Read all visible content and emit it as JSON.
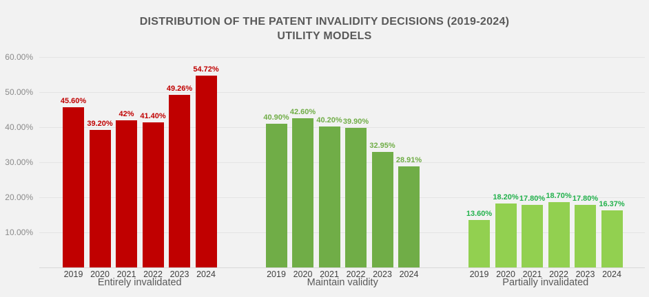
{
  "title": {
    "line1": "DISTRIBUTION OF THE PATENT INVALIDITY DECISIONS (2019-2024)",
    "line2": "UTILITY MODELS"
  },
  "chart_data": {
    "type": "bar",
    "title": "DISTRIBUTION OF THE PATENT INVALIDITY DECISIONS (2019-2024) UTILITY MODELS",
    "categories": [
      "2019",
      "2020",
      "2021",
      "2022",
      "2023",
      "2024"
    ],
    "series": [
      {
        "name": "Entirely invalidated",
        "color": "#C00000",
        "label_color": "#C00000",
        "values": [
          45.6,
          39.2,
          42,
          41.4,
          49.26,
          54.72
        ],
        "labels": [
          "45.60%",
          "39.20%",
          "42%",
          "41.40%",
          "49.26%",
          "54.72%"
        ]
      },
      {
        "name": "Maintain validity",
        "color": "#70AD47",
        "label_color": "#70AD47",
        "values": [
          40.9,
          42.6,
          40.2,
          39.9,
          32.95,
          28.91
        ],
        "labels": [
          "40.90%",
          "42.60%",
          "40.20%",
          "39.90%",
          "32.95%",
          "28.91%"
        ]
      },
      {
        "name": "Partially invalidated",
        "color": "#92D050",
        "label_color": "#22B14C",
        "values": [
          13.6,
          18.2,
          17.8,
          18.7,
          17.8,
          16.37
        ],
        "labels": [
          "13.60%",
          "18.20%",
          "17.80%",
          "18.70%",
          "17.80%",
          "16.37%"
        ]
      }
    ],
    "ylim": [
      0,
      60
    ],
    "yticks": [
      {
        "value": 10,
        "label": "10.00%"
      },
      {
        "value": 20,
        "label": "20.00%"
      },
      {
        "value": 30,
        "label": "30.00%"
      },
      {
        "value": 40,
        "label": "40.00%"
      },
      {
        "value": 50,
        "label": "50.00%"
      },
      {
        "value": 60,
        "label": "60.00%"
      }
    ],
    "grid": true,
    "legend": "none"
  }
}
